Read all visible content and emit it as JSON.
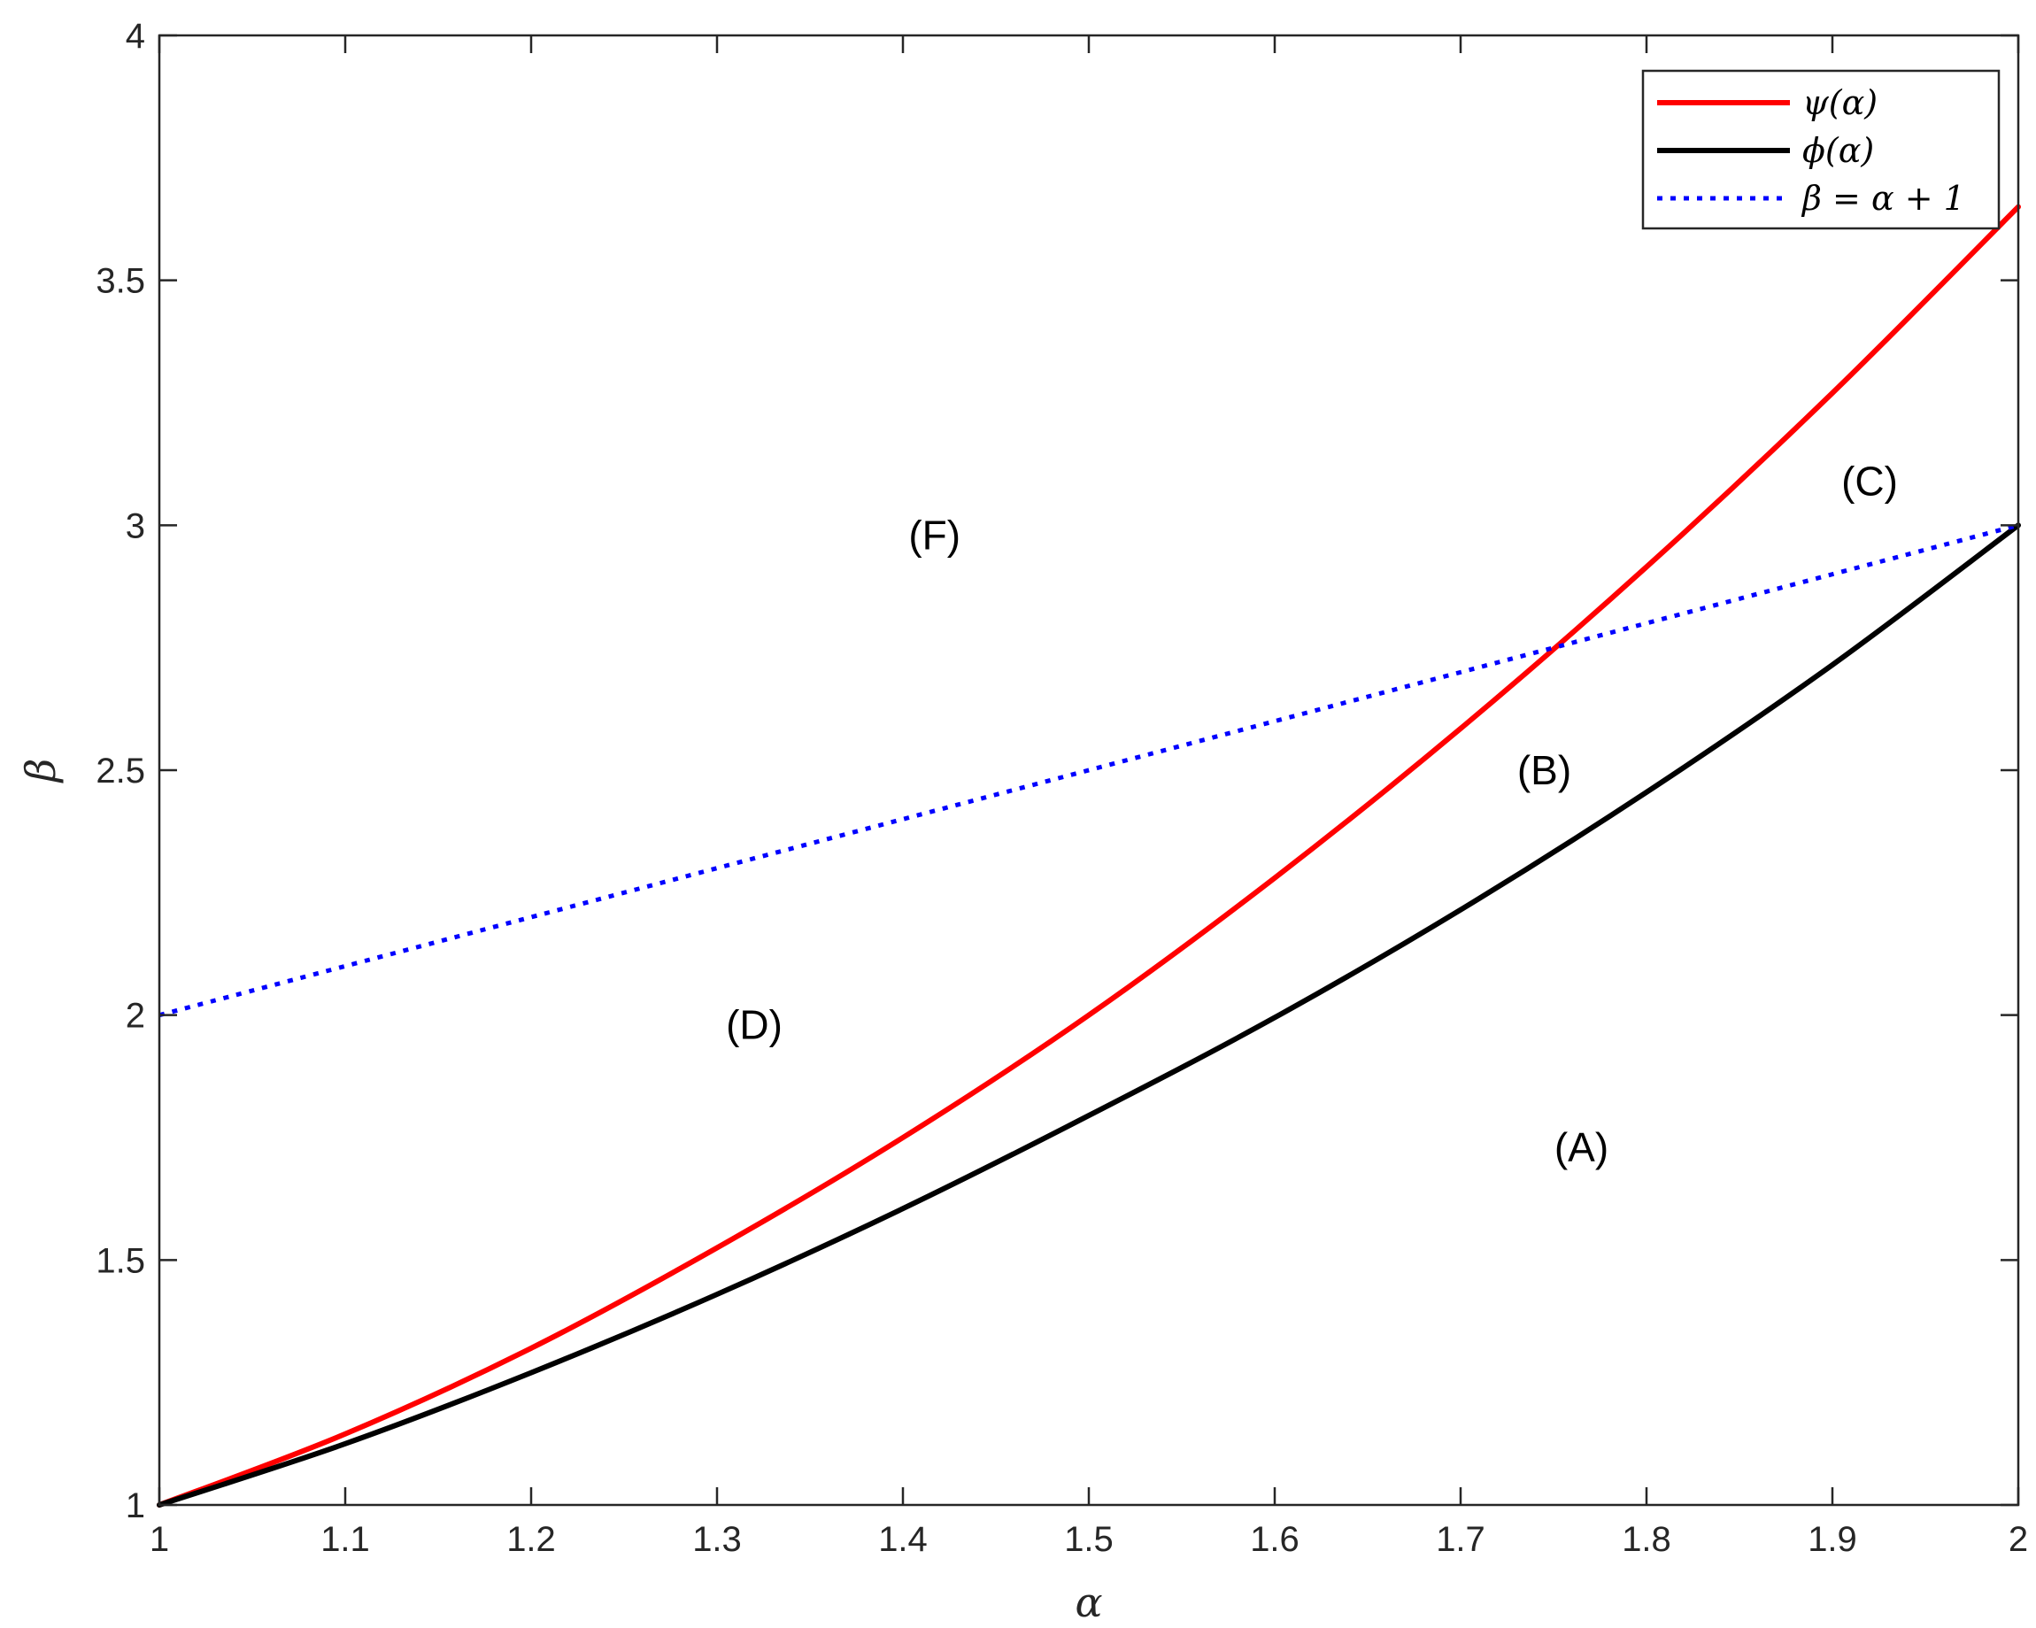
{
  "chart_data": {
    "type": "line",
    "xlabel": "α",
    "ylabel": "β",
    "xlim": [
      1,
      2
    ],
    "ylim": [
      1,
      4
    ],
    "xticks": [
      1,
      1.1,
      1.2,
      1.3,
      1.4,
      1.5,
      1.6,
      1.7,
      1.8,
      1.9,
      2
    ],
    "yticks": [
      1,
      1.5,
      2,
      2.5,
      3,
      3.5,
      4
    ],
    "xtick_labels": [
      "1",
      "1.1",
      "1.2",
      "1.3",
      "1.4",
      "1.5",
      "1.6",
      "1.7",
      "1.8",
      "1.9",
      "2"
    ],
    "ytick_labels": [
      "1",
      "1.5",
      "2",
      "2.5",
      "3",
      "3.5",
      "4"
    ],
    "grid": false,
    "legend_position": "top-right",
    "series": [
      {
        "name": "ψ(α)",
        "color": "#ff0000",
        "style": "solid",
        "x": [
          1,
          1.1,
          1.2,
          1.3,
          1.4,
          1.5,
          1.6,
          1.7,
          1.8,
          1.9,
          2
        ],
        "y": [
          1,
          1.145,
          1.32,
          1.525,
          1.75,
          2.0,
          2.28,
          2.585,
          2.915,
          3.27,
          3.65
        ]
      },
      {
        "name": "ϕ(α)",
        "color": "#000000",
        "style": "solid",
        "x": [
          1,
          1.1,
          1.2,
          1.3,
          1.4,
          1.5,
          1.6,
          1.7,
          1.8,
          1.9,
          2
        ],
        "y": [
          1,
          1.125,
          1.27,
          1.43,
          1.605,
          1.795,
          1.995,
          2.215,
          2.455,
          2.715,
          3.0
        ]
      },
      {
        "name": "β = α + 1",
        "color": "#0000ff",
        "style": "dotted",
        "x": [
          1,
          2
        ],
        "y": [
          2,
          3
        ]
      }
    ],
    "annotations": [
      {
        "text": "(A)",
        "x": 1.765,
        "y": 1.73
      },
      {
        "text": "(B)",
        "x": 1.745,
        "y": 2.5
      },
      {
        "text": "(C)",
        "x": 1.92,
        "y": 3.09
      },
      {
        "text": "(D)",
        "x": 1.32,
        "y": 1.98
      },
      {
        "text": "(F)",
        "x": 1.417,
        "y": 2.98
      }
    ]
  }
}
